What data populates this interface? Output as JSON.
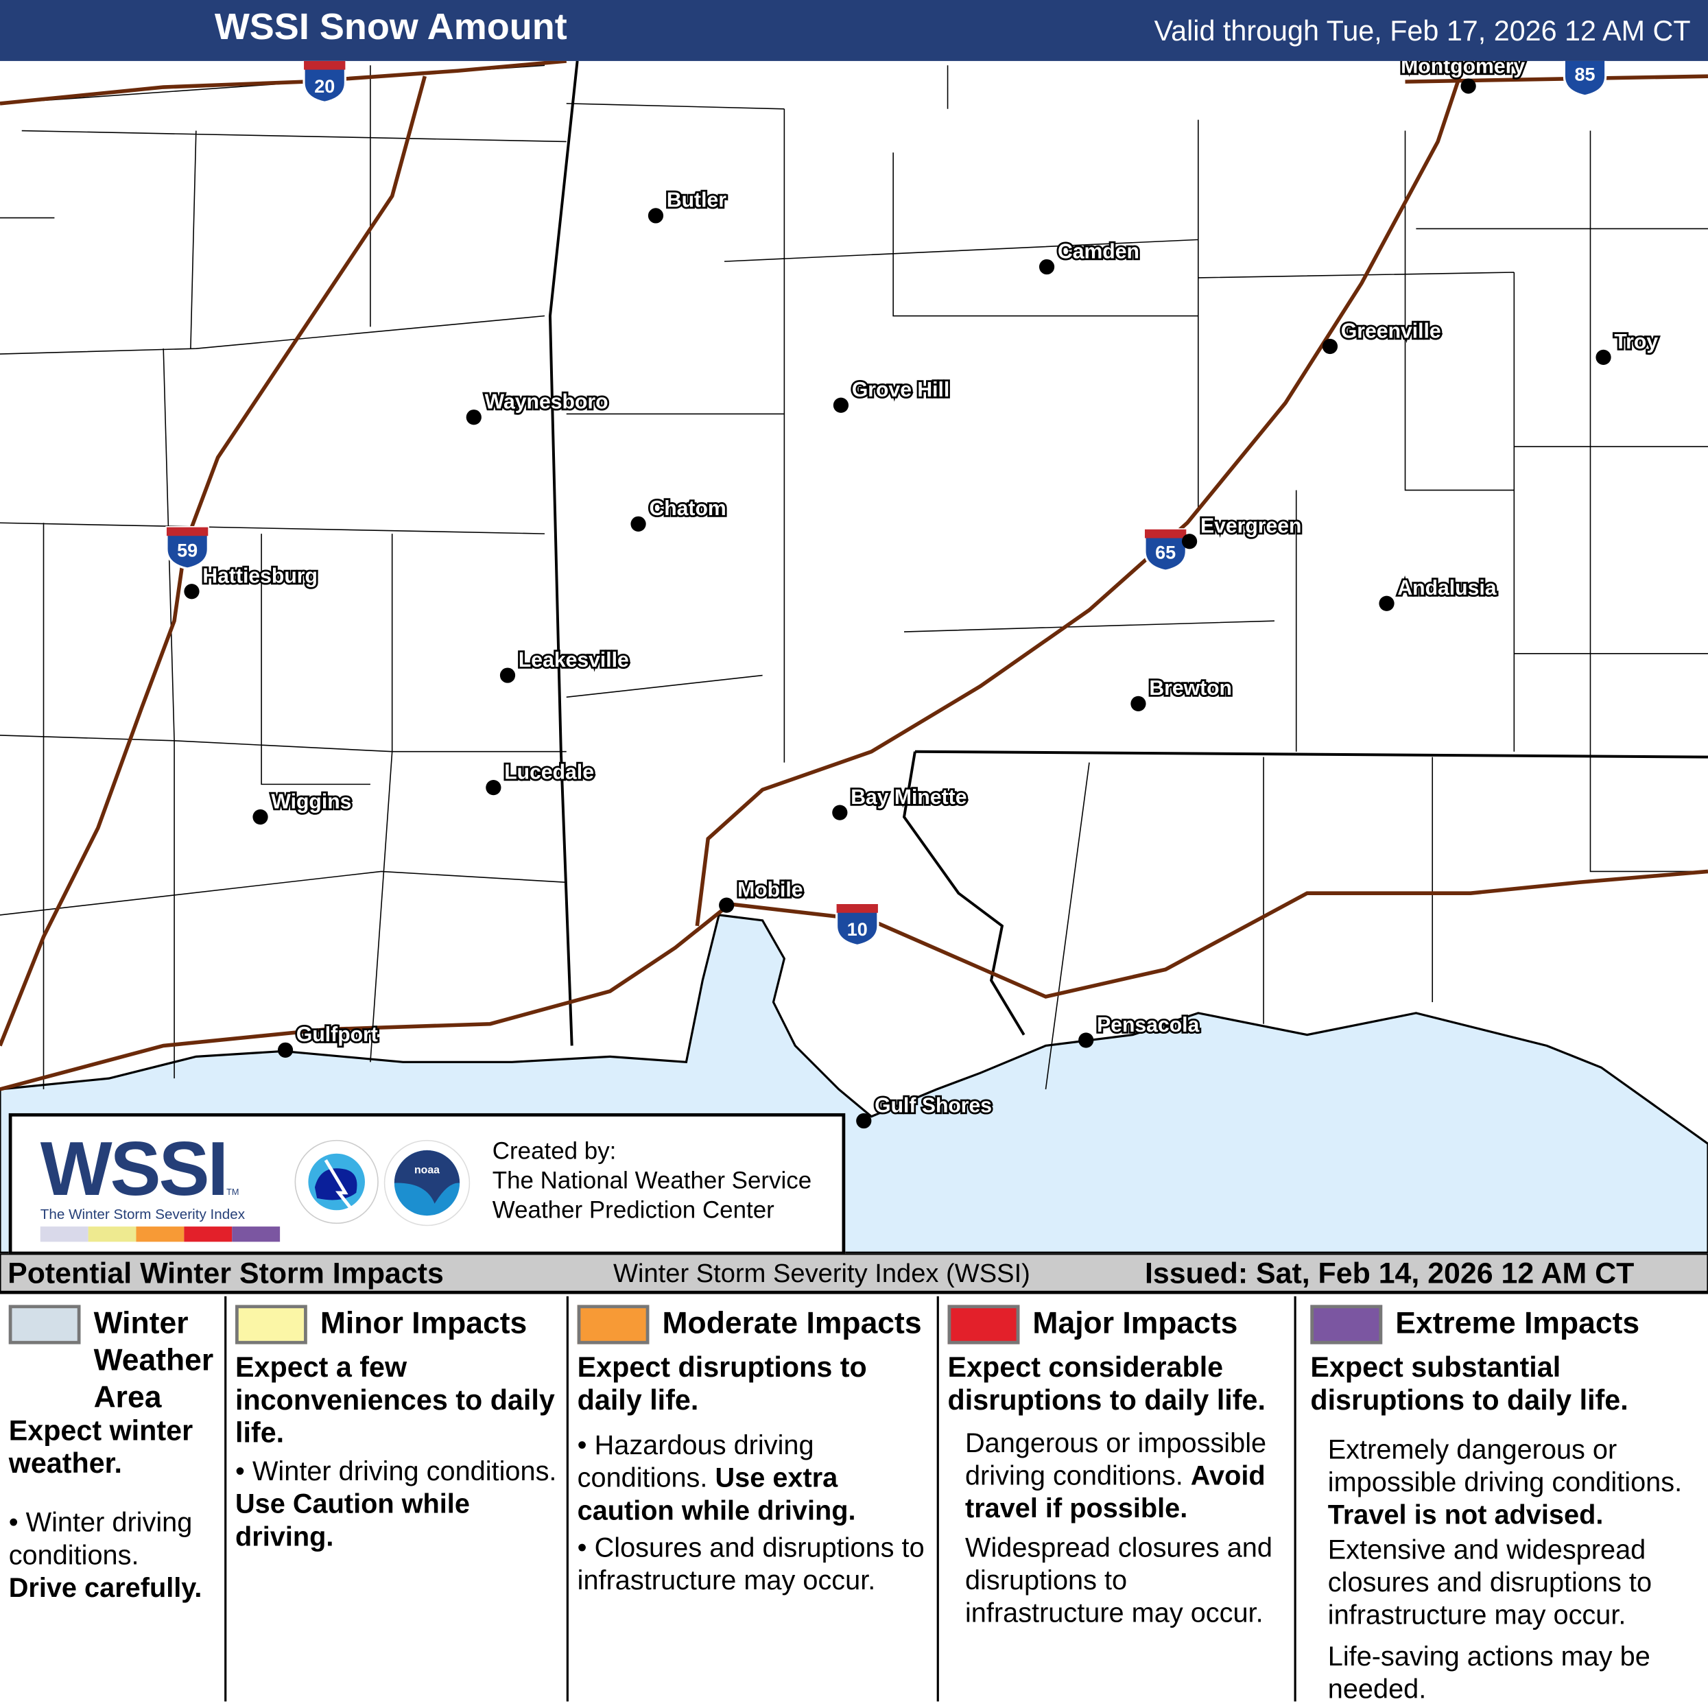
{
  "header": {
    "title": "WSSI Snow Amount",
    "valid": "Valid through Tue, Feb 17, 2026 12 AM CT"
  },
  "map": {
    "water_color": "#dbeefc",
    "road_color": "#6b2a0a",
    "cities": [
      "Montgomery",
      "Butler",
      "Camden",
      "Greenville",
      "Troy",
      "Waynesboro",
      "Grove Hill",
      "Chatom",
      "Evergreen",
      "Hattiesburg",
      "Andalusia",
      "Leakesville",
      "Brewton",
      "Lucedale",
      "Bay Minette",
      "Wiggins",
      "Mobile",
      "Gulfport",
      "Pensacola",
      "Gulf Shores"
    ],
    "interstates": [
      "20",
      "85",
      "59",
      "65",
      "10"
    ]
  },
  "credit": {
    "logo": "WSSI",
    "tm": "TM",
    "logo_sub": "The Winter Storm Severity Index",
    "line1": "Created by:",
    "line2": "The National Weather Service",
    "line3": "Weather Prediction Center",
    "scale_colors": [
      "#d9d9ea",
      "#eeea90",
      "#f79a36",
      "#e3202a",
      "#7b56a1"
    ]
  },
  "bar": {
    "left": "Potential Winter Storm Impacts",
    "center": "Winter Storm Severity Index (WSSI)",
    "right": "Issued: Sat, Feb 14, 2026 12 AM CT"
  },
  "legend": [
    {
      "title": "Winter Weather Area",
      "color": "#d3dfe8",
      "headline": "Expect winter weather.",
      "b1": "Winter driving conditions.",
      "b1b": "Drive carefully."
    },
    {
      "title": "Minor Impacts",
      "color": "#fbf6a6",
      "headline": "Expect a few inconveniences to daily life.",
      "b1": "Winter driving conditions.",
      "b1b": "Use Caution while driving."
    },
    {
      "title": "Moderate Impacts",
      "color": "#f79a36",
      "headline": "Expect disruptions to daily life.",
      "b1": "Hazardous driving conditions.",
      "b1b": "Use extra caution while driving.",
      "b2": "Closures and disruptions to infrastructure may occur."
    },
    {
      "title": "Major Impacts",
      "color": "#e3202a",
      "headline": "Expect considerable disruptions to daily life.",
      "b1": "Dangerous or impossible driving conditions.",
      "b1b": "Avoid travel if possible.",
      "b2": "Widespread closures and disruptions to infrastructure may occur."
    },
    {
      "title": "Extreme Impacts",
      "color": "#7b56a1",
      "headline": "Expect substantial disruptions to daily life.",
      "b1": "Extremely dangerous or impossible driving conditions.",
      "b1b": "Travel is not advised.",
      "b2": "Extensive and widespread closures and disruptions to infrastructure may occur.",
      "b3": "Life-saving actions may be needed."
    }
  ]
}
